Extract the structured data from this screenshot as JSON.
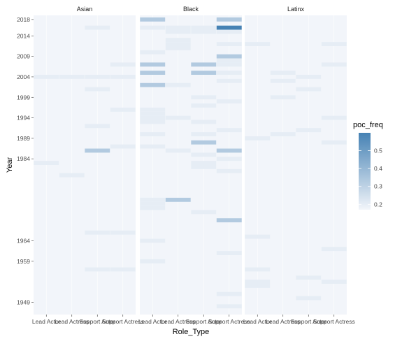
{
  "chart_data": {
    "type": "heatmap",
    "xlabel": "Role_Type",
    "ylabel": "Year",
    "x_categories": [
      "Lead Actor",
      "Lead Actress",
      "Support Actor",
      "Support Actress"
    ],
    "x_tick_labels": [
      "Lead Actor",
      "Lead Actress",
      "Support Actor",
      "Support Actress"
    ],
    "facets": [
      "Asian",
      "Black",
      "Latinx"
    ],
    "y_range": [
      1946,
      2019
    ],
    "y_ticks": [
      1949,
      1959,
      1964,
      1984,
      1989,
      1994,
      1999,
      2004,
      2009,
      2014,
      2018
    ],
    "legend": {
      "title": "poc_freq",
      "ticks": [
        0.2,
        0.3,
        0.4,
        0.5
      ],
      "range": [
        0.17,
        0.6
      ],
      "low_color": "#f2f5fa",
      "high_color": "#4682b4",
      "position": "right"
    },
    "background_value": 0.17,
    "cells": [
      {
        "facet": "Asian",
        "role": "Support Actor",
        "year": 2016,
        "value": 0.2
      },
      {
        "facet": "Asian",
        "role": "Support Actress",
        "year": 2007,
        "value": 0.2
      },
      {
        "facet": "Asian",
        "role": "Lead Actor",
        "year": 2004,
        "value": 0.2
      },
      {
        "facet": "Asian",
        "role": "Lead Actress",
        "year": 2004,
        "value": 0.2
      },
      {
        "facet": "Asian",
        "role": "Support Actor",
        "year": 2004,
        "value": 0.2
      },
      {
        "facet": "Asian",
        "role": "Support Actress",
        "year": 2004,
        "value": 0.2
      },
      {
        "facet": "Asian",
        "role": "Support Actor",
        "year": 2001,
        "value": 0.2
      },
      {
        "facet": "Asian",
        "role": "Support Actress",
        "year": 1996,
        "value": 0.2
      },
      {
        "facet": "Asian",
        "role": "Support Actor",
        "year": 1992,
        "value": 0.2
      },
      {
        "facet": "Asian",
        "role": "Support Actress",
        "year": 1987,
        "value": 0.2
      },
      {
        "facet": "Asian",
        "role": "Support Actor",
        "year": 1986,
        "value": 0.33
      },
      {
        "facet": "Asian",
        "role": "Lead Actor",
        "year": 1983,
        "value": 0.2
      },
      {
        "facet": "Asian",
        "role": "Lead Actress",
        "year": 1980,
        "value": 0.2
      },
      {
        "facet": "Asian",
        "role": "Support Actor",
        "year": 1966,
        "value": 0.2
      },
      {
        "facet": "Asian",
        "role": "Support Actress",
        "year": 1966,
        "value": 0.2
      },
      {
        "facet": "Asian",
        "role": "Support Actor",
        "year": 1957,
        "value": 0.2
      },
      {
        "facet": "Asian",
        "role": "Support Actress",
        "year": 1957,
        "value": 0.2
      },
      {
        "facet": "Black",
        "role": "Lead Actor",
        "year": 2018,
        "value": 0.33
      },
      {
        "facet": "Black",
        "role": "Support Actress",
        "year": 2018,
        "value": 0.33
      },
      {
        "facet": "Black",
        "role": "Support Actress",
        "year": 2016,
        "value": 0.6
      },
      {
        "facet": "Black",
        "role": "Lead Actress",
        "year": 2016,
        "value": 0.2
      },
      {
        "facet": "Black",
        "role": "Support Actor",
        "year": 2016,
        "value": 0.2
      },
      {
        "facet": "Black",
        "role": "Lead Actor",
        "year": 2016,
        "value": 0.2
      },
      {
        "facet": "Black",
        "role": "Support Actress",
        "year": 2015,
        "value": 0.2
      },
      {
        "facet": "Black",
        "role": "Lead Actress",
        "year": 2015,
        "value": 0.2
      },
      {
        "facet": "Black",
        "role": "Support Actor",
        "year": 2015,
        "value": 0.2
      },
      {
        "facet": "Black",
        "role": "Lead Actress",
        "year": 2013,
        "value": 0.2
      },
      {
        "facet": "Black",
        "role": "Lead Actress",
        "year": 2012,
        "value": 0.2
      },
      {
        "facet": "Black",
        "role": "Lead Actress",
        "year": 2011,
        "value": 0.2
      },
      {
        "facet": "Black",
        "role": "Support Actress",
        "year": 2012,
        "value": 0.2
      },
      {
        "facet": "Black",
        "role": "Lead Actor",
        "year": 2010,
        "value": 0.2
      },
      {
        "facet": "Black",
        "role": "Support Actress",
        "year": 2009,
        "value": 0.33
      },
      {
        "facet": "Black",
        "role": "Support Actress",
        "year": 2008,
        "value": 0.2
      },
      {
        "facet": "Black",
        "role": "Support Actress",
        "year": 2007,
        "value": 0.2
      },
      {
        "facet": "Black",
        "role": "Lead Actor",
        "year": 2007,
        "value": 0.33
      },
      {
        "facet": "Black",
        "role": "Support Actor",
        "year": 2007,
        "value": 0.33
      },
      {
        "facet": "Black",
        "role": "Lead Actor",
        "year": 2005,
        "value": 0.33
      },
      {
        "facet": "Black",
        "role": "Support Actor",
        "year": 2005,
        "value": 0.33
      },
      {
        "facet": "Black",
        "role": "Support Actress",
        "year": 2005,
        "value": 0.2
      },
      {
        "facet": "Black",
        "role": "Support Actress",
        "year": 2003,
        "value": 0.2
      },
      {
        "facet": "Black",
        "role": "Lead Actor",
        "year": 2002,
        "value": 0.33
      },
      {
        "facet": "Black",
        "role": "Lead Actress",
        "year": 2002,
        "value": 0.2
      },
      {
        "facet": "Black",
        "role": "Support Actor",
        "year": 1999,
        "value": 0.2
      },
      {
        "facet": "Black",
        "role": "Support Actress",
        "year": 1998,
        "value": 0.2
      },
      {
        "facet": "Black",
        "role": "Support Actor",
        "year": 1997,
        "value": 0.2
      },
      {
        "facet": "Black",
        "role": "Lead Actor",
        "year": 1996,
        "value": 0.2
      },
      {
        "facet": "Black",
        "role": "Lead Actor",
        "year": 1995,
        "value": 0.2
      },
      {
        "facet": "Black",
        "role": "Lead Actress",
        "year": 1994,
        "value": 0.2
      },
      {
        "facet": "Black",
        "role": "Lead Actor",
        "year": 1994,
        "value": 0.2
      },
      {
        "facet": "Black",
        "role": "Support Actor",
        "year": 1993,
        "value": 0.2
      },
      {
        "facet": "Black",
        "role": "Lead Actor",
        "year": 1993,
        "value": 0.2
      },
      {
        "facet": "Black",
        "role": "Support Actress",
        "year": 1991,
        "value": 0.2
      },
      {
        "facet": "Black",
        "role": "Lead Actor",
        "year": 1990,
        "value": 0.2
      },
      {
        "facet": "Black",
        "role": "Support Actor",
        "year": 1990,
        "value": 0.2
      },
      {
        "facet": "Black",
        "role": "Support Actor",
        "year": 1988,
        "value": 0.33
      },
      {
        "facet": "Black",
        "role": "Lead Actor",
        "year": 1987,
        "value": 0.2
      },
      {
        "facet": "Black",
        "role": "Support Actress",
        "year": 1986,
        "value": 0.33
      },
      {
        "facet": "Black",
        "role": "Lead Actress",
        "year": 1986,
        "value": 0.2
      },
      {
        "facet": "Black",
        "role": "Support Actor",
        "year": 1985,
        "value": 0.2
      },
      {
        "facet": "Black",
        "role": "Support Actress",
        "year": 1984,
        "value": 0.2
      },
      {
        "facet": "Black",
        "role": "Support Actor",
        "year": 1983,
        "value": 0.2
      },
      {
        "facet": "Black",
        "role": "Support Actor",
        "year": 1982,
        "value": 0.2
      },
      {
        "facet": "Black",
        "role": "Support Actress",
        "year": 1981,
        "value": 0.2
      },
      {
        "facet": "Black",
        "role": "Lead Actor",
        "year": 1974,
        "value": 0.2
      },
      {
        "facet": "Black",
        "role": "Lead Actress",
        "year": 1974,
        "value": 0.33
      },
      {
        "facet": "Black",
        "role": "Lead Actor",
        "year": 1973,
        "value": 0.2
      },
      {
        "facet": "Black",
        "role": "Lead Actor",
        "year": 1972,
        "value": 0.2
      },
      {
        "facet": "Black",
        "role": "Support Actor",
        "year": 1971,
        "value": 0.2
      },
      {
        "facet": "Black",
        "role": "Support Actress",
        "year": 1969,
        "value": 0.33
      },
      {
        "facet": "Black",
        "role": "Lead Actor",
        "year": 1964,
        "value": 0.2
      },
      {
        "facet": "Black",
        "role": "Support Actress",
        "year": 1961,
        "value": 0.2
      },
      {
        "facet": "Black",
        "role": "Lead Actor",
        "year": 1959,
        "value": 0.2
      },
      {
        "facet": "Black",
        "role": "Support Actress",
        "year": 1951,
        "value": 0.2
      },
      {
        "facet": "Black",
        "role": "Support Actress",
        "year": 1948,
        "value": 0.2
      },
      {
        "facet": "Latinx",
        "role": "Lead Actor",
        "year": 2012,
        "value": 0.2
      },
      {
        "facet": "Latinx",
        "role": "Support Actress",
        "year": 2012,
        "value": 0.2
      },
      {
        "facet": "Latinx",
        "role": "Support Actress",
        "year": 2007,
        "value": 0.2
      },
      {
        "facet": "Latinx",
        "role": "Lead Actress",
        "year": 2005,
        "value": 0.2
      },
      {
        "facet": "Latinx",
        "role": "Support Actor",
        "year": 2004,
        "value": 0.2
      },
      {
        "facet": "Latinx",
        "role": "Lead Actress",
        "year": 2003,
        "value": 0.2
      },
      {
        "facet": "Latinx",
        "role": "Support Actor",
        "year": 2001,
        "value": 0.2
      },
      {
        "facet": "Latinx",
        "role": "Lead Actress",
        "year": 1999,
        "value": 0.2
      },
      {
        "facet": "Latinx",
        "role": "Support Actress",
        "year": 1994,
        "value": 0.2
      },
      {
        "facet": "Latinx",
        "role": "Support Actor",
        "year": 1991,
        "value": 0.2
      },
      {
        "facet": "Latinx",
        "role": "Lead Actress",
        "year": 1990,
        "value": 0.2
      },
      {
        "facet": "Latinx",
        "role": "Lead Actor",
        "year": 1989,
        "value": 0.2
      },
      {
        "facet": "Latinx",
        "role": "Support Actress",
        "year": 1988,
        "value": 0.2
      },
      {
        "facet": "Latinx",
        "role": "Lead Actor",
        "year": 1965,
        "value": 0.2
      },
      {
        "facet": "Latinx",
        "role": "Support Actress",
        "year": 1962,
        "value": 0.2
      },
      {
        "facet": "Latinx",
        "role": "Lead Actor",
        "year": 1957,
        "value": 0.2
      },
      {
        "facet": "Latinx",
        "role": "Support Actor",
        "year": 1955,
        "value": 0.2
      },
      {
        "facet": "Latinx",
        "role": "Lead Actor",
        "year": 1954,
        "value": 0.2
      },
      {
        "facet": "Latinx",
        "role": "Lead Actor",
        "year": 1953,
        "value": 0.2
      },
      {
        "facet": "Latinx",
        "role": "Support Actress",
        "year": 1954,
        "value": 0.2
      },
      {
        "facet": "Latinx",
        "role": "Support Actor",
        "year": 1950,
        "value": 0.2
      }
    ]
  }
}
